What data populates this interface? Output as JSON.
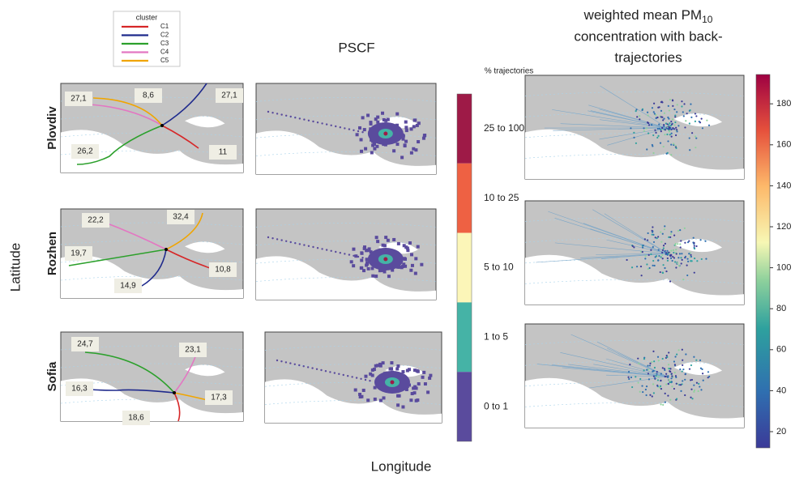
{
  "legend": {
    "title": "cluster",
    "items": [
      {
        "name": "C1",
        "color": "#d62728"
      },
      {
        "name": "C2",
        "color": "#1f2a8c"
      },
      {
        "name": "C3",
        "color": "#2ca02c"
      },
      {
        "name": "C4",
        "color": "#e377c2"
      },
      {
        "name": "C5",
        "color": "#f0a500"
      }
    ]
  },
  "pscf_title": "PSCF",
  "pm10_title": {
    "line1": "weighted mean PM",
    "subscript": "10",
    "line2": "concentration with back-",
    "line3": "trajectories"
  },
  "pscf_legend": {
    "title": "% trajectories",
    "classes": [
      {
        "label": "25 to 100",
        "color": "#9e1a47"
      },
      {
        "label": "10 to 25",
        "color": "#ee6143"
      },
      {
        "label": "5 to 10",
        "color": "#fcf6b8"
      },
      {
        "label": "1 to 5",
        "color": "#45b3a6"
      },
      {
        "label": "0 to 1",
        "color": "#5a4b9d"
      }
    ]
  },
  "colorbar": {
    "ticks": [
      20,
      40,
      60,
      80,
      100,
      120,
      140,
      160,
      180
    ]
  },
  "stations": [
    {
      "name": "Plovdiv",
      "cluster_labels": [
        "27,1",
        "8,6",
        "27,1",
        "26,2",
        "11"
      ]
    },
    {
      "name": "Rozhen",
      "cluster_labels": [
        "22,2",
        "32,4",
        "19,7",
        "10,8",
        "14,9"
      ]
    },
    {
      "name": "Sofia",
      "cluster_labels": [
        "24,7",
        "23,1",
        "16,3",
        "17,3",
        "18,6"
      ]
    }
  ],
  "axes": {
    "y": "Latitude",
    "x": "Longitude"
  }
}
